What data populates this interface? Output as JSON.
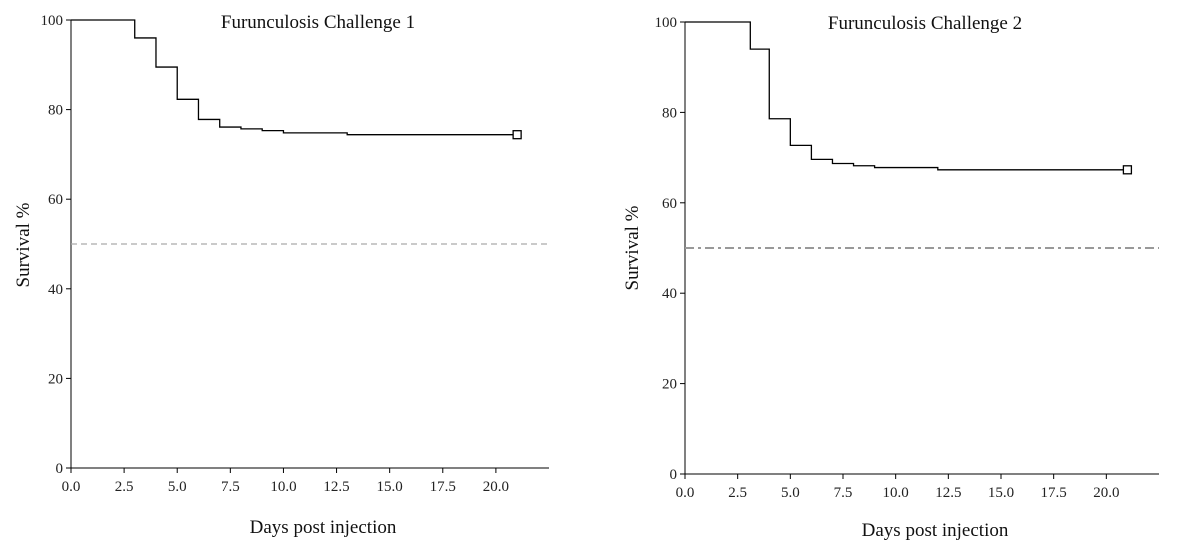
{
  "chart_data": [
    {
      "type": "line",
      "title": "Furunculosis Challenge 1",
      "xlabel": "Days post injection",
      "ylabel": "Survival %",
      "xlim": [
        0,
        22.5
      ],
      "ylim": [
        0,
        100
      ],
      "xticks": [
        "0.0",
        "2.5",
        "5.0",
        "7.5",
        "10.0",
        "12.5",
        "15.0",
        "17.5",
        "20.0"
      ],
      "yticks": [
        "0",
        "20",
        "40",
        "60",
        "80",
        "100"
      ],
      "series": [
        {
          "step": true,
          "color": "#000000",
          "end_marker": "square",
          "x": [
            0,
            3,
            4,
            5,
            6,
            7,
            8,
            9,
            10,
            13,
            21
          ],
          "y": [
            100,
            96,
            89.5,
            82.3,
            77.8,
            76.1,
            75.7,
            75.3,
            74.8,
            74.4,
            74.4
          ]
        }
      ],
      "reference_line": {
        "y": 50,
        "style": "dashed",
        "color": "#aaaaaa"
      }
    },
    {
      "type": "line",
      "title": "Furunculosis Challenge 2",
      "xlabel": "Days post injection",
      "ylabel": "Survival %",
      "xlim": [
        0,
        22.5
      ],
      "ylim": [
        0,
        100
      ],
      "xticks": [
        "0.0",
        "2.5",
        "5.0",
        "7.5",
        "10.0",
        "12.5",
        "15.0",
        "17.5",
        "20.0"
      ],
      "yticks": [
        "0",
        "20",
        "40",
        "60",
        "80",
        "100"
      ],
      "series": [
        {
          "step": true,
          "color": "#000000",
          "end_marker": "square",
          "x": [
            0,
            3.1,
            4,
            5,
            6,
            7,
            8,
            9,
            12,
            21
          ],
          "y": [
            100,
            94,
            78.6,
            72.7,
            69.6,
            68.7,
            68.2,
            67.8,
            67.3,
            67.3
          ]
        }
      ],
      "reference_line": {
        "y": 50,
        "style": "dashdot",
        "color": "#999999"
      }
    }
  ]
}
